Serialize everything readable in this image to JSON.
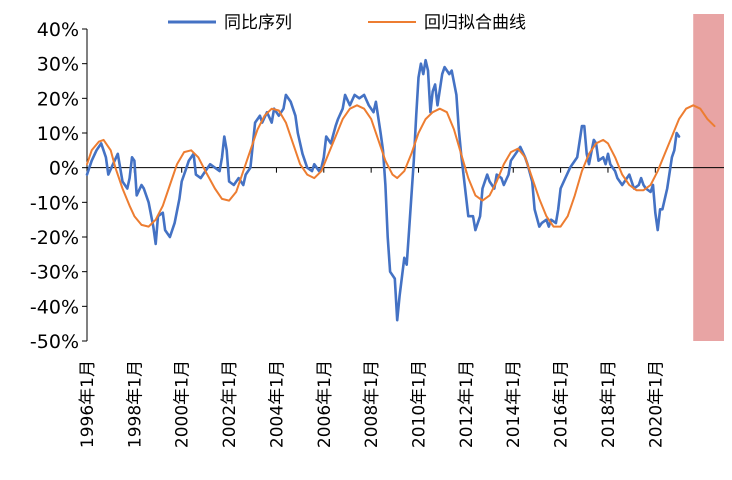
{
  "chart_data": {
    "type": "line",
    "y_unit": "%",
    "ylim": [
      -50,
      40
    ],
    "yticks": [
      "40%",
      "30%",
      "20%",
      "10%",
      "0%",
      "-10%",
      "-20%",
      "-30%",
      "-40%",
      "-50%"
    ],
    "ytick_values": [
      40,
      30,
      20,
      10,
      0,
      -10,
      -20,
      -30,
      -40,
      -50
    ],
    "xlim": [
      1996.0,
      2022.9
    ],
    "xtick_values": [
      1996,
      1998,
      2000,
      2002,
      2004,
      2006,
      2008,
      2010,
      2012,
      2014,
      2016,
      2018,
      2020
    ],
    "xticks": [
      "1996年1月",
      "1998年1月",
      "2000年1月",
      "2002年1月",
      "2004年1月",
      "2006年1月",
      "2008年1月",
      "2010年1月",
      "2012年1月",
      "2014年1月",
      "2016年1月",
      "2018年1月",
      "2020年1月"
    ],
    "grid": false,
    "legend_position": "top-center",
    "forecast_region": {
      "x_start": 2021.6,
      "x_end": 2022.9,
      "color": "#e8a4a4"
    },
    "series": [
      {
        "name": "同比序列",
        "color": "#4472c4",
        "points": [
          [
            1996.0,
            -2
          ],
          [
            1996.2,
            2
          ],
          [
            1996.4,
            5
          ],
          [
            1996.6,
            7
          ],
          [
            1996.8,
            3
          ],
          [
            1996.9,
            -2
          ],
          [
            1997.1,
            1
          ],
          [
            1997.3,
            4
          ],
          [
            1997.5,
            -4
          ],
          [
            1997.7,
            -6
          ],
          [
            1997.8,
            -3
          ],
          [
            1997.9,
            3
          ],
          [
            1998.0,
            2
          ],
          [
            1998.1,
            -8
          ],
          [
            1998.3,
            -5
          ],
          [
            1998.4,
            -6
          ],
          [
            1998.6,
            -10
          ],
          [
            1998.8,
            -17
          ],
          [
            1998.9,
            -22
          ],
          [
            1999.0,
            -14
          ],
          [
            1999.2,
            -13
          ],
          [
            1999.3,
            -18
          ],
          [
            1999.5,
            -20
          ],
          [
            1999.7,
            -16
          ],
          [
            1999.9,
            -9
          ],
          [
            2000.0,
            -4
          ],
          [
            2000.2,
            0
          ],
          [
            2000.3,
            2
          ],
          [
            2000.5,
            4
          ],
          [
            2000.6,
            -2
          ],
          [
            2000.8,
            -3
          ],
          [
            2001.0,
            -1
          ],
          [
            2001.2,
            1
          ],
          [
            2001.4,
            0
          ],
          [
            2001.6,
            -1
          ],
          [
            2001.7,
            3
          ],
          [
            2001.8,
            9
          ],
          [
            2001.9,
            5
          ],
          [
            2002.0,
            -4
          ],
          [
            2002.2,
            -5
          ],
          [
            2002.4,
            -3
          ],
          [
            2002.5,
            -4
          ],
          [
            2002.6,
            -5
          ],
          [
            2002.7,
            -2
          ],
          [
            2002.9,
            0
          ],
          [
            2003.1,
            13
          ],
          [
            2003.3,
            15
          ],
          [
            2003.4,
            13
          ],
          [
            2003.6,
            16
          ],
          [
            2003.8,
            13
          ],
          [
            2003.9,
            17
          ],
          [
            2004.1,
            15
          ],
          [
            2004.3,
            17
          ],
          [
            2004.4,
            21
          ],
          [
            2004.6,
            19
          ],
          [
            2004.8,
            15
          ],
          [
            2004.9,
            10
          ],
          [
            2005.1,
            4
          ],
          [
            2005.3,
            0
          ],
          [
            2005.5,
            -1
          ],
          [
            2005.6,
            1
          ],
          [
            2005.8,
            -1
          ],
          [
            2005.9,
            0
          ],
          [
            2006.0,
            3
          ],
          [
            2006.1,
            9
          ],
          [
            2006.3,
            7
          ],
          [
            2006.5,
            12
          ],
          [
            2006.6,
            14
          ],
          [
            2006.8,
            17
          ],
          [
            2006.9,
            21
          ],
          [
            2007.1,
            18
          ],
          [
            2007.3,
            21
          ],
          [
            2007.5,
            20
          ],
          [
            2007.7,
            21
          ],
          [
            2007.9,
            18
          ],
          [
            2008.1,
            16
          ],
          [
            2008.2,
            19
          ],
          [
            2008.4,
            10
          ],
          [
            2008.5,
            5
          ],
          [
            2008.6,
            -5
          ],
          [
            2008.7,
            -20
          ],
          [
            2008.8,
            -30
          ],
          [
            2009.0,
            -32
          ],
          [
            2009.1,
            -44
          ],
          [
            2009.2,
            -37
          ],
          [
            2009.4,
            -26
          ],
          [
            2009.5,
            -28
          ],
          [
            2009.6,
            -18
          ],
          [
            2009.8,
            2
          ],
          [
            2009.9,
            15
          ],
          [
            2010.0,
            26
          ],
          [
            2010.1,
            30
          ],
          [
            2010.2,
            27
          ],
          [
            2010.3,
            31
          ],
          [
            2010.4,
            28
          ],
          [
            2010.5,
            16
          ],
          [
            2010.6,
            22
          ],
          [
            2010.7,
            24
          ],
          [
            2010.8,
            18
          ],
          [
            2011.0,
            27
          ],
          [
            2011.1,
            29
          ],
          [
            2011.3,
            27
          ],
          [
            2011.4,
            28
          ],
          [
            2011.6,
            21
          ],
          [
            2011.7,
            11
          ],
          [
            2011.8,
            4
          ],
          [
            2012.0,
            -8
          ],
          [
            2012.1,
            -14
          ],
          [
            2012.3,
            -14
          ],
          [
            2012.4,
            -18
          ],
          [
            2012.6,
            -14
          ],
          [
            2012.7,
            -6
          ],
          [
            2012.9,
            -2
          ],
          [
            2013.0,
            -4
          ],
          [
            2013.2,
            -6
          ],
          [
            2013.3,
            -2
          ],
          [
            2013.5,
            -3
          ],
          [
            2013.6,
            -5
          ],
          [
            2013.8,
            -2
          ],
          [
            2013.9,
            2
          ],
          [
            2014.1,
            4
          ],
          [
            2014.3,
            6
          ],
          [
            2014.5,
            3
          ],
          [
            2014.6,
            1
          ],
          [
            2014.8,
            -4
          ],
          [
            2014.9,
            -12
          ],
          [
            2015.1,
            -17
          ],
          [
            2015.2,
            -16
          ],
          [
            2015.4,
            -15
          ],
          [
            2015.5,
            -17
          ],
          [
            2015.6,
            -15
          ],
          [
            2015.8,
            -16
          ],
          [
            2015.9,
            -12
          ],
          [
            2016.0,
            -6
          ],
          [
            2016.2,
            -3
          ],
          [
            2016.4,
            0
          ],
          [
            2016.5,
            1
          ],
          [
            2016.7,
            3
          ],
          [
            2016.9,
            12
          ],
          [
            2017.0,
            12
          ],
          [
            2017.1,
            4
          ],
          [
            2017.2,
            1
          ],
          [
            2017.4,
            8
          ],
          [
            2017.5,
            7
          ],
          [
            2017.6,
            2
          ],
          [
            2017.8,
            3
          ],
          [
            2017.9,
            1
          ],
          [
            2018.0,
            4
          ],
          [
            2018.1,
            1
          ],
          [
            2018.3,
            -1
          ],
          [
            2018.4,
            -3
          ],
          [
            2018.6,
            -5
          ],
          [
            2018.8,
            -3
          ],
          [
            2018.9,
            -2
          ],
          [
            2019.1,
            -6
          ],
          [
            2019.3,
            -5
          ],
          [
            2019.4,
            -3
          ],
          [
            2019.5,
            -5
          ],
          [
            2019.6,
            -6
          ],
          [
            2019.8,
            -7
          ],
          [
            2019.9,
            -5
          ],
          [
            2020.0,
            -13
          ],
          [
            2020.1,
            -18
          ],
          [
            2020.2,
            -12
          ],
          [
            2020.3,
            -12
          ],
          [
            2020.5,
            -6
          ],
          [
            2020.7,
            3
          ],
          [
            2020.8,
            5
          ],
          [
            2020.9,
            10
          ],
          [
            2021.0,
            9
          ]
        ]
      },
      {
        "name": "回归拟合曲线",
        "color": "#ed7d31",
        "points": [
          [
            1996.0,
            1
          ],
          [
            1996.2,
            5
          ],
          [
            1996.5,
            7.5
          ],
          [
            1996.7,
            8
          ],
          [
            1997.0,
            5
          ],
          [
            1997.2,
            0
          ],
          [
            1997.5,
            -6
          ],
          [
            1997.8,
            -11
          ],
          [
            1998.0,
            -14
          ],
          [
            1998.3,
            -16.5
          ],
          [
            1998.6,
            -17
          ],
          [
            1998.9,
            -15
          ],
          [
            1999.2,
            -11
          ],
          [
            1999.5,
            -5
          ],
          [
            1999.8,
            1
          ],
          [
            2000.1,
            4.5
          ],
          [
            2000.4,
            5
          ],
          [
            2000.7,
            3
          ],
          [
            2001.0,
            -1
          ],
          [
            2001.4,
            -6
          ],
          [
            2001.7,
            -9
          ],
          [
            2002.0,
            -9.5
          ],
          [
            2002.3,
            -7
          ],
          [
            2002.6,
            -1
          ],
          [
            2002.9,
            5
          ],
          [
            2003.2,
            11
          ],
          [
            2003.5,
            15
          ],
          [
            2003.8,
            17
          ],
          [
            2004.1,
            16.5
          ],
          [
            2004.4,
            13
          ],
          [
            2004.7,
            7
          ],
          [
            2005.0,
            1
          ],
          [
            2005.3,
            -2
          ],
          [
            2005.6,
            -3
          ],
          [
            2005.9,
            -1
          ],
          [
            2006.2,
            4
          ],
          [
            2006.5,
            9
          ],
          [
            2006.8,
            14
          ],
          [
            2007.1,
            17
          ],
          [
            2007.4,
            18
          ],
          [
            2007.7,
            17
          ],
          [
            2008.0,
            14
          ],
          [
            2008.3,
            8
          ],
          [
            2008.6,
            2
          ],
          [
            2008.9,
            -2
          ],
          [
            2009.1,
            -3
          ],
          [
            2009.4,
            -1
          ],
          [
            2009.7,
            4
          ],
          [
            2010.0,
            10
          ],
          [
            2010.3,
            14
          ],
          [
            2010.6,
            16
          ],
          [
            2010.9,
            17
          ],
          [
            2011.2,
            16
          ],
          [
            2011.5,
            11
          ],
          [
            2011.8,
            4
          ],
          [
            2012.1,
            -3
          ],
          [
            2012.4,
            -8
          ],
          [
            2012.7,
            -9.5
          ],
          [
            2013.0,
            -8
          ],
          [
            2013.3,
            -4
          ],
          [
            2013.6,
            1
          ],
          [
            2013.9,
            4.5
          ],
          [
            2014.2,
            5.5
          ],
          [
            2014.5,
            3
          ],
          [
            2014.8,
            -3
          ],
          [
            2015.1,
            -9
          ],
          [
            2015.4,
            -14
          ],
          [
            2015.7,
            -17
          ],
          [
            2016.0,
            -17
          ],
          [
            2016.3,
            -14
          ],
          [
            2016.6,
            -8
          ],
          [
            2016.9,
            -1
          ],
          [
            2017.2,
            4
          ],
          [
            2017.5,
            7
          ],
          [
            2017.8,
            8
          ],
          [
            2018.0,
            7
          ],
          [
            2018.3,
            3
          ],
          [
            2018.6,
            -2
          ],
          [
            2018.9,
            -5
          ],
          [
            2019.2,
            -6.5
          ],
          [
            2019.5,
            -6.5
          ],
          [
            2019.8,
            -5
          ],
          [
            2020.1,
            -1
          ],
          [
            2020.4,
            4
          ],
          [
            2020.7,
            9
          ],
          [
            2021.0,
            14
          ],
          [
            2021.3,
            17
          ],
          [
            2021.6,
            18
          ],
          [
            2021.9,
            17
          ],
          [
            2022.2,
            14
          ],
          [
            2022.5,
            12
          ]
        ]
      }
    ]
  }
}
